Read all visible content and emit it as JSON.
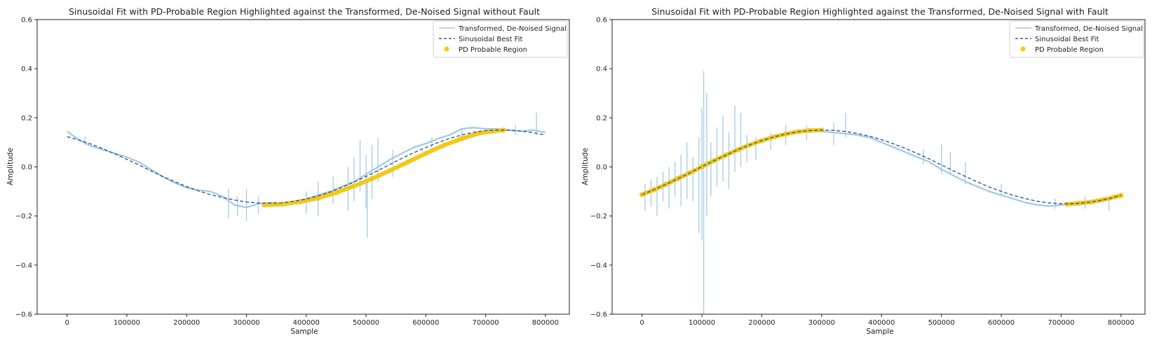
{
  "colors": {
    "signal": "#9ec9e6",
    "fit": "#3b5a8a",
    "pd_region": "#f2c918",
    "axes": "#222222"
  },
  "chart_data": [
    {
      "type": "line",
      "title": "Sinusoidal Fit with PD-Probable Region Highlighted against the Transformed, De-Noised Signal without Fault",
      "xlabel": "Sample",
      "ylabel": "Amplitude",
      "xlim": [
        -50000,
        840000
      ],
      "ylim": [
        -0.6,
        0.6
      ],
      "xticks": [
        0,
        100000,
        200000,
        300000,
        400000,
        500000,
        600000,
        700000,
        800000
      ],
      "xtick_labels": [
        "0",
        "100000",
        "200000",
        "300000",
        "400000",
        "500000",
        "600000",
        "700000",
        "800000"
      ],
      "yticks": [
        -0.6,
        -0.4,
        -0.2,
        0.0,
        0.2,
        0.4,
        0.6
      ],
      "ytick_labels": [
        "−0.6",
        "−0.4",
        "−0.2",
        "0.0",
        "0.2",
        "0.4",
        "0.6"
      ],
      "legend": [
        "Transformed, De-Noised Signal",
        "Sinusoidal Best Fit",
        "PD Probable Region"
      ],
      "legend_position": "top-right",
      "grid": false,
      "series": [
        {
          "name": "Transformed, De-Noised Signal",
          "style": "solid",
          "x": [
            0,
            20000,
            40000,
            60000,
            80000,
            100000,
            120000,
            140000,
            160000,
            180000,
            200000,
            220000,
            240000,
            260000,
            280000,
            300000,
            320000,
            340000,
            360000,
            380000,
            400000,
            420000,
            440000,
            460000,
            480000,
            500000,
            520000,
            540000,
            560000,
            580000,
            600000,
            620000,
            640000,
            660000,
            680000,
            700000,
            720000,
            740000,
            760000,
            780000,
            800000
          ],
          "y": [
            0.145,
            0.11,
            0.085,
            0.07,
            0.055,
            0.04,
            0.02,
            -0.01,
            -0.04,
            -0.065,
            -0.085,
            -0.095,
            -0.1,
            -0.12,
            -0.155,
            -0.165,
            -0.15,
            -0.145,
            -0.15,
            -0.14,
            -0.13,
            -0.115,
            -0.1,
            -0.08,
            -0.06,
            -0.03,
            0.0,
            0.03,
            0.055,
            0.08,
            0.095,
            0.115,
            0.13,
            0.155,
            0.16,
            0.155,
            0.155,
            0.15,
            0.145,
            0.15,
            0.14
          ]
        },
        {
          "name": "Sinusoidal Best Fit",
          "style": "dashed",
          "x": [
            0,
            20000,
            40000,
            60000,
            80000,
            100000,
            120000,
            140000,
            160000,
            180000,
            200000,
            220000,
            240000,
            260000,
            280000,
            300000,
            320000,
            340000,
            360000,
            380000,
            400000,
            420000,
            440000,
            460000,
            480000,
            500000,
            520000,
            540000,
            560000,
            580000,
            600000,
            620000,
            640000,
            660000,
            680000,
            700000,
            720000,
            740000,
            760000,
            780000,
            800000
          ],
          "y": [
            0.123,
            0.109,
            0.093,
            0.074,
            0.053,
            0.031,
            0.008,
            -0.016,
            -0.039,
            -0.06,
            -0.08,
            -0.098,
            -0.113,
            -0.125,
            -0.135,
            -0.143,
            -0.147,
            -0.148,
            -0.146,
            -0.14,
            -0.131,
            -0.118,
            -0.102,
            -0.083,
            -0.062,
            -0.039,
            -0.015,
            0.01,
            0.035,
            0.058,
            0.079,
            0.099,
            0.116,
            0.13,
            0.141,
            0.148,
            0.15,
            0.149,
            0.146,
            0.139,
            0.13
          ]
        },
        {
          "name": "PD Probable Region",
          "style": "points",
          "x": [
            330000,
            360000,
            390000,
            420000,
            450000,
            480000,
            510000,
            540000,
            570000,
            600000,
            630000,
            660000,
            690000,
            730000
          ],
          "y": [
            -0.155,
            -0.152,
            -0.142,
            -0.127,
            -0.105,
            -0.078,
            -0.048,
            -0.015,
            0.02,
            0.055,
            0.088,
            0.115,
            0.138,
            0.15
          ]
        }
      ],
      "noise_spikes": [
        {
          "x": 30000,
          "lo": 0.09,
          "hi": 0.125
        },
        {
          "x": 270000,
          "lo": -0.21,
          "hi": -0.09
        },
        {
          "x": 285000,
          "lo": -0.2,
          "hi": -0.12
        },
        {
          "x": 300000,
          "lo": -0.22,
          "hi": -0.09
        },
        {
          "x": 320000,
          "lo": -0.19,
          "hi": -0.12
        },
        {
          "x": 400000,
          "lo": -0.19,
          "hi": -0.1
        },
        {
          "x": 420000,
          "lo": -0.2,
          "hi": -0.06
        },
        {
          "x": 445000,
          "lo": -0.15,
          "hi": -0.04
        },
        {
          "x": 470000,
          "lo": -0.18,
          "hi": 0.0
        },
        {
          "x": 480000,
          "lo": -0.14,
          "hi": 0.04
        },
        {
          "x": 490000,
          "lo": -0.1,
          "hi": 0.11
        },
        {
          "x": 500000,
          "lo": -0.17,
          "hi": 0.05
        },
        {
          "x": 502000,
          "lo": -0.29,
          "hi": -0.05
        },
        {
          "x": 510000,
          "lo": -0.13,
          "hi": 0.09
        },
        {
          "x": 520000,
          "lo": -0.06,
          "hi": 0.12
        },
        {
          "x": 545000,
          "lo": -0.04,
          "hi": 0.07
        },
        {
          "x": 610000,
          "lo": 0.06,
          "hi": 0.12
        },
        {
          "x": 660000,
          "lo": 0.11,
          "hi": 0.16
        },
        {
          "x": 750000,
          "lo": 0.13,
          "hi": 0.17
        },
        {
          "x": 785000,
          "lo": 0.13,
          "hi": 0.22
        }
      ]
    },
    {
      "type": "line",
      "title": "Sinusoidal Fit with PD-Probable Region Highlighted against the Transformed, De-Noised Signal with Fault",
      "xlabel": "Sample",
      "ylabel": "Amplitude",
      "xlim": [
        -50000,
        840000
      ],
      "ylim": [
        -0.6,
        0.6
      ],
      "xticks": [
        0,
        100000,
        200000,
        300000,
        400000,
        500000,
        600000,
        700000,
        800000
      ],
      "xtick_labels": [
        "0",
        "100000",
        "200000",
        "300000",
        "400000",
        "500000",
        "600000",
        "700000",
        "800000"
      ],
      "yticks": [
        -0.6,
        -0.4,
        -0.2,
        0.0,
        0.2,
        0.4,
        0.6
      ],
      "ytick_labels": [
        "−0.6",
        "−0.4",
        "−0.2",
        "0.0",
        "0.2",
        "0.4",
        "0.6"
      ],
      "legend": [
        "Transformed, De-Noised Signal",
        "Sinusoidal Best Fit",
        "PD Probable Region"
      ],
      "legend_position": "top-right",
      "grid": false,
      "series": [
        {
          "name": "Transformed, De-Noised Signal",
          "style": "solid",
          "x": [
            0,
            20000,
            40000,
            60000,
            80000,
            100000,
            120000,
            140000,
            160000,
            180000,
            200000,
            220000,
            240000,
            260000,
            280000,
            300000,
            320000,
            340000,
            360000,
            380000,
            400000,
            420000,
            440000,
            460000,
            480000,
            500000,
            520000,
            540000,
            560000,
            580000,
            600000,
            620000,
            640000,
            660000,
            680000,
            700000,
            720000,
            740000,
            760000,
            780000,
            800000
          ],
          "y": [
            -0.115,
            -0.09,
            -0.065,
            -0.04,
            -0.02,
            0.0,
            0.025,
            0.05,
            0.075,
            0.095,
            0.11,
            0.125,
            0.135,
            0.14,
            0.145,
            0.145,
            0.14,
            0.135,
            0.13,
            0.12,
            0.1,
            0.08,
            0.06,
            0.04,
            0.02,
            -0.01,
            -0.035,
            -0.06,
            -0.08,
            -0.1,
            -0.115,
            -0.13,
            -0.145,
            -0.155,
            -0.16,
            -0.155,
            -0.15,
            -0.145,
            -0.14,
            -0.13,
            -0.12
          ]
        },
        {
          "name": "Sinusoidal Best Fit",
          "style": "dashed",
          "x": [
            0,
            20000,
            40000,
            60000,
            80000,
            100000,
            120000,
            140000,
            160000,
            180000,
            200000,
            220000,
            240000,
            260000,
            280000,
            300000,
            320000,
            340000,
            360000,
            380000,
            400000,
            420000,
            440000,
            460000,
            480000,
            500000,
            520000,
            540000,
            560000,
            580000,
            600000,
            620000,
            640000,
            660000,
            680000,
            700000,
            720000,
            740000,
            760000,
            780000,
            800000
          ],
          "y": [
            -0.113,
            -0.093,
            -0.071,
            -0.048,
            -0.024,
            0.001,
            0.025,
            0.048,
            0.07,
            0.09,
            0.107,
            0.122,
            0.134,
            0.143,
            0.148,
            0.15,
            0.149,
            0.144,
            0.136,
            0.125,
            0.111,
            0.094,
            0.075,
            0.054,
            0.032,
            0.008,
            -0.016,
            -0.039,
            -0.061,
            -0.082,
            -0.1,
            -0.116,
            -0.129,
            -0.14,
            -0.147,
            -0.15,
            -0.15,
            -0.146,
            -0.139,
            -0.129,
            -0.116
          ]
        },
        {
          "name": "PD Probable Region",
          "style": "points",
          "x": [
            0,
            20000,
            40000,
            60000,
            80000,
            100000,
            120000,
            140000,
            160000,
            180000,
            200000,
            220000,
            240000,
            260000,
            280000,
            300000,
            710000,
            730000,
            750000,
            770000,
            790000,
            800000
          ],
          "y": [
            -0.113,
            -0.093,
            -0.071,
            -0.048,
            -0.024,
            0.001,
            0.025,
            0.048,
            0.07,
            0.09,
            0.107,
            0.122,
            0.134,
            0.143,
            0.148,
            0.15,
            -0.152,
            -0.148,
            -0.143,
            -0.134,
            -0.122,
            -0.116
          ]
        }
      ],
      "noise_spikes": [
        {
          "x": 5000,
          "lo": -0.18,
          "hi": -0.07
        },
        {
          "x": 15000,
          "lo": -0.16,
          "hi": -0.05
        },
        {
          "x": 25000,
          "lo": -0.2,
          "hi": -0.04
        },
        {
          "x": 35000,
          "lo": -0.14,
          "hi": -0.02
        },
        {
          "x": 45000,
          "lo": -0.17,
          "hi": 0.0
        },
        {
          "x": 55000,
          "lo": -0.12,
          "hi": 0.02
        },
        {
          "x": 65000,
          "lo": -0.16,
          "hi": 0.05
        },
        {
          "x": 75000,
          "lo": -0.13,
          "hi": 0.1
        },
        {
          "x": 85000,
          "lo": -0.14,
          "hi": 0.04
        },
        {
          "x": 95000,
          "lo": -0.27,
          "hi": 0.12
        },
        {
          "x": 100000,
          "lo": -0.3,
          "hi": 0.24
        },
        {
          "x": 103000,
          "lo": -0.6,
          "hi": 0.39
        },
        {
          "x": 108000,
          "lo": -0.2,
          "hi": 0.3
        },
        {
          "x": 115000,
          "lo": -0.12,
          "hi": 0.1
        },
        {
          "x": 125000,
          "lo": -0.08,
          "hi": 0.16
        },
        {
          "x": 135000,
          "lo": -0.06,
          "hi": 0.21
        },
        {
          "x": 145000,
          "lo": -0.09,
          "hi": 0.14
        },
        {
          "x": 155000,
          "lo": -0.02,
          "hi": 0.25
        },
        {
          "x": 165000,
          "lo": 0.0,
          "hi": 0.22
        },
        {
          "x": 175000,
          "lo": 0.02,
          "hi": 0.13
        },
        {
          "x": 190000,
          "lo": 0.03,
          "hi": 0.12
        },
        {
          "x": 215000,
          "lo": 0.07,
          "hi": 0.14
        },
        {
          "x": 240000,
          "lo": 0.09,
          "hi": 0.17
        },
        {
          "x": 275000,
          "lo": 0.11,
          "hi": 0.17
        },
        {
          "x": 320000,
          "lo": 0.09,
          "hi": 0.18
        },
        {
          "x": 340000,
          "lo": 0.12,
          "hi": 0.22
        },
        {
          "x": 470000,
          "lo": 0.01,
          "hi": 0.07
        },
        {
          "x": 500000,
          "lo": -0.03,
          "hi": 0.09
        },
        {
          "x": 515000,
          "lo": -0.03,
          "hi": 0.06
        },
        {
          "x": 540000,
          "lo": -0.07,
          "hi": 0.02
        },
        {
          "x": 600000,
          "lo": -0.12,
          "hi": -0.07
        },
        {
          "x": 690000,
          "lo": -0.17,
          "hi": -0.13
        },
        {
          "x": 740000,
          "lo": -0.17,
          "hi": -0.12
        },
        {
          "x": 780000,
          "lo": -0.18,
          "hi": -0.12
        }
      ]
    }
  ]
}
